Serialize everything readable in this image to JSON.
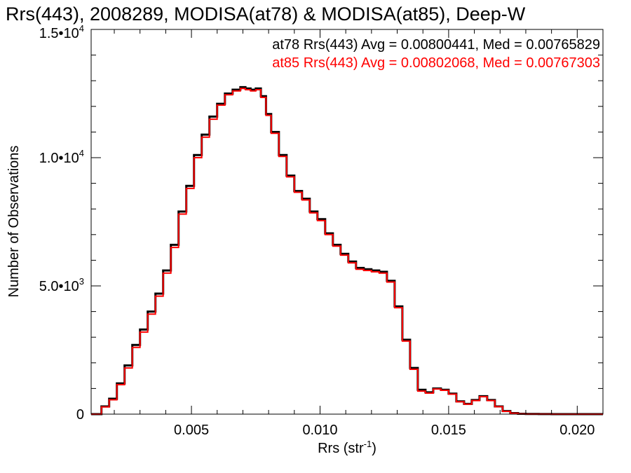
{
  "chart_data": {
    "type": "line",
    "title": "Rrs(443), 2008289, MODISA(at78) & MODISA(at85), Deep-W",
    "xlabel": "Rrs (str",
    "xlabel_sup": "-1",
    "xlabel_end": ")",
    "ylabel": "Number of Observations",
    "xlim": [
      0.0011,
      0.021
    ],
    "ylim": [
      0,
      15000
    ],
    "x_ticks": [
      {
        "value": 0.005,
        "label": "0.005"
      },
      {
        "value": 0.01,
        "label": "0.010"
      },
      {
        "value": 0.015,
        "label": "0.015"
      },
      {
        "value": 0.02,
        "label": "0.020"
      }
    ],
    "y_ticks": [
      {
        "value": 0,
        "label": "0",
        "exp": ""
      },
      {
        "value": 5000,
        "label": "5.0•10",
        "exp": "3"
      },
      {
        "value": 10000,
        "label": "1.0•10",
        "exp": "4"
      },
      {
        "value": 15000,
        "label": "1.5•10",
        "exp": "4"
      }
    ],
    "grid": false,
    "annotations": [
      {
        "text": "at78 Rrs(443) Avg = 0.00800441, Med = 0.00765829",
        "color": "#000000"
      },
      {
        "text": "at85 Rrs(443) Avg = 0.00802068, Med = 0.00767303",
        "color": "#ff0000"
      }
    ],
    "series": [
      {
        "color": "#000000",
        "x": [
          0.0011,
          0.0015,
          0.0018,
          0.0021,
          0.0024,
          0.0027,
          0.003,
          0.0033,
          0.0036,
          0.0039,
          0.0042,
          0.0045,
          0.0048,
          0.0051,
          0.0054,
          0.0057,
          0.006,
          0.0063,
          0.0066,
          0.0069,
          0.0071,
          0.0073,
          0.0075,
          0.0077,
          0.0079,
          0.0081,
          0.0084,
          0.0087,
          0.009,
          0.0093,
          0.0096,
          0.0099,
          0.0102,
          0.0105,
          0.0108,
          0.0111,
          0.0114,
          0.0117,
          0.012,
          0.0123,
          0.0126,
          0.0129,
          0.0132,
          0.0135,
          0.0138,
          0.0141,
          0.0144,
          0.0147,
          0.015,
          0.0153,
          0.0156,
          0.0159,
          0.0162,
          0.0165,
          0.0168,
          0.0171,
          0.0174,
          0.0177,
          0.018,
          0.0185,
          0.019,
          0.0195,
          0.02,
          0.021
        ],
        "y": [
          0,
          300,
          600,
          1200,
          1900,
          2700,
          3300,
          4000,
          4700,
          5600,
          6600,
          7900,
          8900,
          10100,
          10900,
          11600,
          12100,
          12500,
          12650,
          12750,
          12700,
          12650,
          12700,
          12400,
          11700,
          11000,
          10100,
          9300,
          8700,
          8400,
          7900,
          7600,
          7050,
          6600,
          6250,
          5950,
          5700,
          5650,
          5600,
          5550,
          5200,
          4200,
          2900,
          1800,
          950,
          850,
          1000,
          950,
          800,
          500,
          400,
          550,
          700,
          550,
          300,
          120,
          40,
          15,
          5,
          2,
          1,
          0,
          0,
          0
        ],
        "name": ""
      },
      {
        "color": "#ff0000",
        "x": [
          0.0011,
          0.0015,
          0.0018,
          0.0021,
          0.0024,
          0.0027,
          0.003,
          0.0033,
          0.0036,
          0.0039,
          0.0042,
          0.0045,
          0.0048,
          0.0051,
          0.0054,
          0.0057,
          0.006,
          0.0063,
          0.0066,
          0.0069,
          0.0071,
          0.0073,
          0.0075,
          0.0077,
          0.0079,
          0.0081,
          0.0084,
          0.0087,
          0.009,
          0.0093,
          0.0096,
          0.0099,
          0.0102,
          0.0105,
          0.0108,
          0.0111,
          0.0114,
          0.0117,
          0.012,
          0.0123,
          0.0126,
          0.0129,
          0.0132,
          0.0135,
          0.0138,
          0.0141,
          0.0144,
          0.0147,
          0.015,
          0.0153,
          0.0156,
          0.0159,
          0.0162,
          0.0165,
          0.0168,
          0.0171,
          0.0174,
          0.0177,
          0.018,
          0.0185,
          0.019,
          0.0195,
          0.02,
          0.021
        ],
        "y": [
          0,
          280,
          560,
          1150,
          1800,
          2600,
          3200,
          3900,
          4600,
          5500,
          6500,
          7800,
          8800,
          10000,
          10800,
          11500,
          12050,
          12450,
          12600,
          12700,
          12650,
          12600,
          12650,
          12350,
          11650,
          10950,
          10050,
          9250,
          8650,
          8350,
          7850,
          7550,
          7000,
          6550,
          6200,
          5900,
          5650,
          5600,
          5550,
          5500,
          5150,
          4150,
          2850,
          1750,
          900,
          820,
          980,
          930,
          780,
          480,
          390,
          530,
          680,
          530,
          290,
          110,
          35,
          12,
          4,
          2,
          1,
          0,
          0,
          0
        ],
        "name": ""
      }
    ]
  }
}
